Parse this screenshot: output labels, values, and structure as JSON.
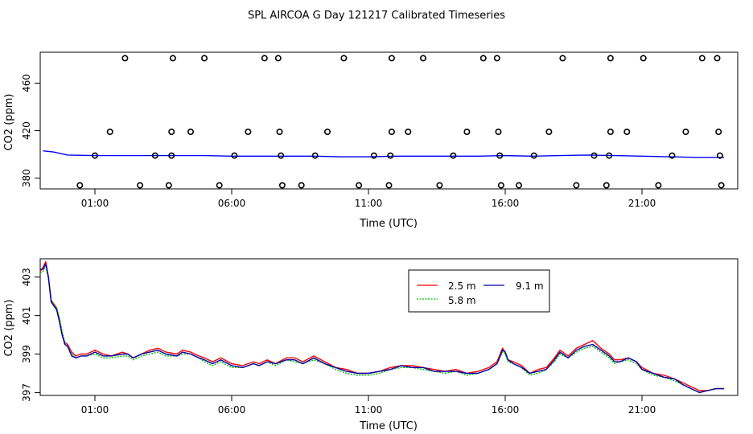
{
  "title": "SPL AIRCOA G  Day 121217  Calibrated Timeseries",
  "chart_data": [
    {
      "type": "scatter",
      "name": "upper-panel",
      "xlabel": "Time (UTC)",
      "ylabel": "CO2 (ppm)",
      "x_unit": "hours UTC",
      "xlim": [
        -1.0,
        24.5
      ],
      "ylim": [
        371,
        486
      ],
      "x_ticks": [
        1,
        6,
        11,
        16,
        21
      ],
      "x_tick_labels": [
        "01:00",
        "06:00",
        "11:00",
        "16:00",
        "21:00"
      ],
      "y_ticks": [
        380,
        420,
        460
      ],
      "y_tick_labels": [
        "380",
        "420",
        "460"
      ],
      "points": [
        {
          "x": 2.1,
          "y": 481
        },
        {
          "x": 3.85,
          "y": 481
        },
        {
          "x": 5.0,
          "y": 481
        },
        {
          "x": 7.2,
          "y": 481
        },
        {
          "x": 7.7,
          "y": 481
        },
        {
          "x": 10.1,
          "y": 481
        },
        {
          "x": 11.85,
          "y": 481
        },
        {
          "x": 13.0,
          "y": 481
        },
        {
          "x": 15.2,
          "y": 481
        },
        {
          "x": 15.7,
          "y": 481
        },
        {
          "x": 18.1,
          "y": 481
        },
        {
          "x": 19.85,
          "y": 481
        },
        {
          "x": 21.05,
          "y": 481
        },
        {
          "x": 23.2,
          "y": 481
        },
        {
          "x": 23.75,
          "y": 481
        },
        {
          "x": 1.55,
          "y": 419
        },
        {
          "x": 3.8,
          "y": 419
        },
        {
          "x": 4.5,
          "y": 419
        },
        {
          "x": 6.6,
          "y": 419
        },
        {
          "x": 7.75,
          "y": 419
        },
        {
          "x": 9.5,
          "y": 419
        },
        {
          "x": 11.85,
          "y": 419
        },
        {
          "x": 12.45,
          "y": 419
        },
        {
          "x": 14.6,
          "y": 419
        },
        {
          "x": 15.75,
          "y": 419
        },
        {
          "x": 17.6,
          "y": 419
        },
        {
          "x": 19.85,
          "y": 419
        },
        {
          "x": 20.45,
          "y": 419
        },
        {
          "x": 22.6,
          "y": 419
        },
        {
          "x": 23.8,
          "y": 419
        },
        {
          "x": 1.0,
          "y": 399
        },
        {
          "x": 3.2,
          "y": 399
        },
        {
          "x": 3.8,
          "y": 399
        },
        {
          "x": 6.1,
          "y": 399
        },
        {
          "x": 7.8,
          "y": 399
        },
        {
          "x": 9.05,
          "y": 399
        },
        {
          "x": 11.2,
          "y": 399
        },
        {
          "x": 11.8,
          "y": 399
        },
        {
          "x": 14.1,
          "y": 399
        },
        {
          "x": 15.8,
          "y": 399
        },
        {
          "x": 17.05,
          "y": 399
        },
        {
          "x": 19.25,
          "y": 399
        },
        {
          "x": 19.8,
          "y": 399
        },
        {
          "x": 22.1,
          "y": 399
        },
        {
          "x": 23.85,
          "y": 399
        },
        {
          "x": 0.45,
          "y": 374
        },
        {
          "x": 2.65,
          "y": 374
        },
        {
          "x": 3.7,
          "y": 374
        },
        {
          "x": 5.55,
          "y": 374
        },
        {
          "x": 7.85,
          "y": 374
        },
        {
          "x": 8.55,
          "y": 374
        },
        {
          "x": 10.65,
          "y": 374
        },
        {
          "x": 11.75,
          "y": 374
        },
        {
          "x": 13.6,
          "y": 374
        },
        {
          "x": 15.85,
          "y": 374
        },
        {
          "x": 16.5,
          "y": 374
        },
        {
          "x": 18.6,
          "y": 374
        },
        {
          "x": 19.7,
          "y": 374
        },
        {
          "x": 21.6,
          "y": 374
        },
        {
          "x": 23.9,
          "y": 374
        }
      ],
      "series": [
        {
          "color": "#0000ff",
          "x": [
            -0.9,
            -0.5,
            0.0,
            1.0,
            2.0,
            3.0,
            4.0,
            5.0,
            6.0,
            7.0,
            8.0,
            9.0,
            10.0,
            11.0,
            12.0,
            13.0,
            14.0,
            15.0,
            16.0,
            17.0,
            18.0,
            19.0,
            20.0,
            21.0,
            22.0,
            23.0,
            24.0
          ],
          "y": [
            403,
            402,
            399.5,
            399,
            399,
            399,
            399,
            399,
            398.5,
            398.5,
            398.5,
            398.5,
            398,
            398,
            398.5,
            398.5,
            398.5,
            398.5,
            399,
            398.5,
            399,
            399.5,
            399,
            398.5,
            398,
            397.5,
            397.5
          ]
        }
      ]
    },
    {
      "type": "line",
      "name": "lower-panel",
      "xlabel": "Time (UTC)",
      "ylabel": "CO2 (ppm)",
      "x_unit": "hours UTC",
      "xlim": [
        -1.0,
        24.5
      ],
      "ylim": [
        396.85,
        403.95
      ],
      "x_ticks": [
        1,
        6,
        11,
        16,
        21
      ],
      "x_tick_labels": [
        "01:00",
        "06:00",
        "11:00",
        "16:00",
        "21:00"
      ],
      "y_ticks": [
        397,
        399,
        401,
        403
      ],
      "y_tick_labels": [
        "397",
        "399",
        "401",
        "403"
      ],
      "legend": {
        "placement": "top-center"
      },
      "series": [
        {
          "name": "2.5 m",
          "color": "#ff0000",
          "x": [
            -1.0,
            -0.9,
            -0.8,
            -0.7,
            -0.6,
            -0.5,
            -0.4,
            -0.3,
            -0.2,
            -0.1,
            0.0,
            0.15,
            0.3,
            0.5,
            0.7,
            1.0,
            1.3,
            1.6,
            2.0,
            2.2,
            2.4,
            2.7,
            3.0,
            3.3,
            3.6,
            4.0,
            4.2,
            4.5,
            4.8,
            5.0,
            5.3,
            5.6,
            6.0,
            6.4,
            6.8,
            7.0,
            7.3,
            7.6,
            8.0,
            8.3,
            8.6,
            9.0,
            9.4,
            9.8,
            10.2,
            10.6,
            11.0,
            11.4,
            11.8,
            12.2,
            12.6,
            13.0,
            13.4,
            13.8,
            14.2,
            14.6,
            15.0,
            15.4,
            15.7,
            15.9,
            16.0,
            16.1,
            16.3,
            16.6,
            16.9,
            17.2,
            17.5,
            17.8,
            18.0,
            18.3,
            18.6,
            18.9,
            19.2,
            19.5,
            19.8,
            20.0,
            20.2,
            20.5,
            20.8,
            21.0,
            21.4,
            21.8,
            22.2,
            22.5,
            22.8,
            23.1,
            23.4,
            23.7,
            24.0
          ],
          "y": [
            403.3,
            403.5,
            403.8,
            403.0,
            401.8,
            401.6,
            401.4,
            400.8,
            400.0,
            399.6,
            399.5,
            399.1,
            398.9,
            399.0,
            399.0,
            399.2,
            399.0,
            398.9,
            399.1,
            399.0,
            398.8,
            399.0,
            399.2,
            399.3,
            399.1,
            399.0,
            399.2,
            399.1,
            398.9,
            398.8,
            398.6,
            398.8,
            398.5,
            398.4,
            398.6,
            398.5,
            398.7,
            398.5,
            398.8,
            398.8,
            398.6,
            398.9,
            398.6,
            398.3,
            398.2,
            398.0,
            398.0,
            398.1,
            398.3,
            398.4,
            398.4,
            398.3,
            398.2,
            398.1,
            398.2,
            398.0,
            398.1,
            398.3,
            398.6,
            399.3,
            399.1,
            398.7,
            398.6,
            398.4,
            398.0,
            398.2,
            398.3,
            398.8,
            399.2,
            398.9,
            399.3,
            399.5,
            399.7,
            399.3,
            399.0,
            398.7,
            398.7,
            398.8,
            398.6,
            398.3,
            398.0,
            397.9,
            397.7,
            397.5,
            397.3,
            397.1,
            397.1,
            397.2,
            397.2
          ]
        },
        {
          "name": "5.8 m",
          "color": "#00bb00",
          "x": [
            -1.0,
            -0.9,
            -0.8,
            -0.7,
            -0.6,
            -0.5,
            -0.4,
            -0.3,
            -0.2,
            -0.1,
            0.0,
            0.15,
            0.3,
            0.5,
            0.7,
            1.0,
            1.3,
            1.6,
            2.0,
            2.2,
            2.4,
            2.7,
            3.0,
            3.3,
            3.6,
            4.0,
            4.2,
            4.5,
            4.8,
            5.0,
            5.3,
            5.6,
            6.0,
            6.4,
            6.8,
            7.0,
            7.3,
            7.6,
            8.0,
            8.3,
            8.6,
            9.0,
            9.4,
            9.8,
            10.2,
            10.6,
            11.0,
            11.4,
            11.8,
            12.2,
            12.6,
            13.0,
            13.4,
            13.8,
            14.2,
            14.6,
            15.0,
            15.4,
            15.7,
            15.9,
            16.0,
            16.1,
            16.3,
            16.6,
            16.9,
            17.2,
            17.5,
            17.8,
            18.0,
            18.3,
            18.6,
            18.9,
            19.2,
            19.5,
            19.8,
            20.0,
            20.2,
            20.5,
            20.8,
            21.0,
            21.4,
            21.8,
            22.2,
            22.5,
            22.8,
            23.1,
            23.4,
            23.7,
            24.0
          ],
          "y": [
            403.2,
            403.3,
            403.6,
            402.9,
            401.8,
            401.6,
            401.4,
            400.9,
            400.2,
            399.6,
            399.4,
            399.0,
            398.8,
            398.9,
            398.9,
            399.0,
            398.8,
            398.8,
            398.9,
            398.9,
            398.7,
            398.9,
            399.0,
            399.1,
            398.9,
            398.9,
            399.0,
            399.0,
            398.8,
            398.6,
            398.4,
            398.6,
            398.3,
            398.3,
            398.5,
            398.4,
            398.6,
            398.4,
            398.7,
            398.6,
            398.5,
            398.7,
            398.5,
            398.2,
            398.0,
            397.9,
            397.9,
            398.0,
            398.2,
            398.3,
            398.3,
            398.2,
            398.1,
            398.0,
            398.1,
            397.9,
            398.0,
            398.2,
            398.5,
            399.1,
            399.0,
            398.6,
            398.5,
            398.3,
            397.9,
            398.0,
            398.2,
            398.6,
            399.0,
            398.8,
            399.1,
            399.3,
            399.4,
            399.1,
            398.8,
            398.5,
            398.6,
            398.7,
            398.5,
            398.2,
            397.9,
            397.8,
            397.6,
            397.4,
            397.2,
            397.0,
            397.1,
            397.2,
            397.2
          ]
        },
        {
          "name": "9.1 m",
          "color": "#0000aa",
          "x": [
            -1.0,
            -0.9,
            -0.8,
            -0.7,
            -0.6,
            -0.5,
            -0.4,
            -0.3,
            -0.2,
            -0.1,
            0.0,
            0.15,
            0.3,
            0.5,
            0.7,
            1.0,
            1.3,
            1.6,
            2.0,
            2.2,
            2.4,
            2.7,
            3.0,
            3.3,
            3.6,
            4.0,
            4.2,
            4.5,
            4.8,
            5.0,
            5.3,
            5.6,
            6.0,
            6.4,
            6.8,
            7.0,
            7.3,
            7.6,
            8.0,
            8.3,
            8.6,
            9.0,
            9.4,
            9.8,
            10.2,
            10.6,
            11.0,
            11.4,
            11.8,
            12.2,
            12.6,
            13.0,
            13.4,
            13.8,
            14.2,
            14.6,
            15.0,
            15.4,
            15.7,
            15.9,
            16.0,
            16.1,
            16.3,
            16.6,
            16.9,
            17.2,
            17.5,
            17.8,
            18.0,
            18.3,
            18.6,
            18.9,
            19.2,
            19.5,
            19.8,
            20.0,
            20.2,
            20.5,
            20.8,
            21.0,
            21.4,
            21.8,
            22.2,
            22.5,
            22.8,
            23.1,
            23.4,
            23.7,
            24.0
          ],
          "y": [
            403.4,
            403.4,
            403.7,
            403.0,
            401.7,
            401.5,
            401.3,
            400.7,
            400.0,
            399.5,
            399.4,
            398.9,
            398.8,
            398.9,
            398.9,
            399.1,
            398.9,
            398.9,
            399.0,
            399.0,
            398.8,
            399.0,
            399.1,
            399.2,
            399.0,
            398.9,
            399.1,
            399.0,
            398.8,
            398.7,
            398.5,
            398.7,
            398.4,
            398.3,
            398.5,
            398.4,
            398.6,
            398.5,
            398.7,
            398.7,
            398.5,
            398.8,
            398.5,
            398.3,
            398.1,
            398.0,
            398.0,
            398.1,
            398.2,
            398.4,
            398.3,
            398.3,
            398.1,
            398.1,
            398.1,
            398.0,
            398.0,
            398.2,
            398.5,
            399.2,
            399.1,
            398.7,
            398.5,
            398.3,
            398.0,
            398.1,
            398.2,
            398.7,
            399.1,
            398.8,
            399.2,
            399.4,
            399.5,
            399.2,
            398.9,
            398.6,
            398.6,
            398.8,
            398.6,
            398.2,
            398.0,
            397.8,
            397.7,
            397.4,
            397.2,
            397.0,
            397.1,
            397.2,
            397.2
          ]
        }
      ]
    }
  ]
}
